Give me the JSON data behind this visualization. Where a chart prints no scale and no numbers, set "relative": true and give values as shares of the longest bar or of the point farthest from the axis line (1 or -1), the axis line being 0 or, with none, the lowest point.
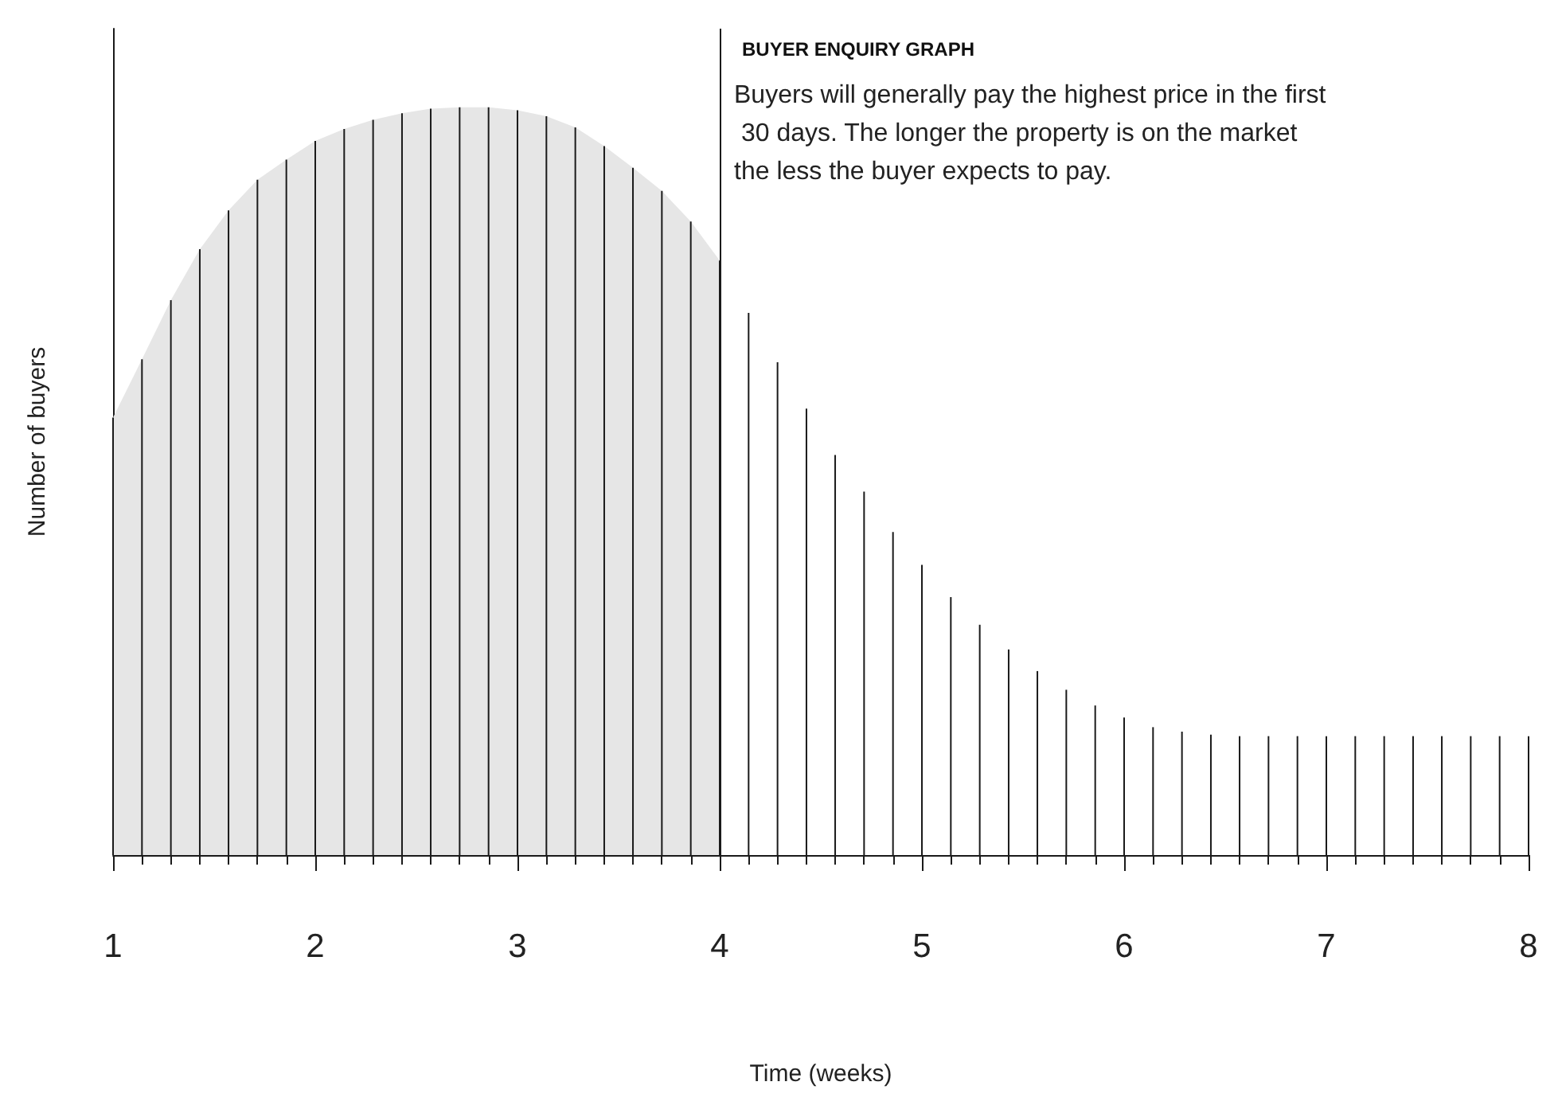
{
  "chart_data": {
    "type": "bar",
    "relative": true,
    "title": "BUYER ENQUIRY GRAPH",
    "annotations": [
      "Buyers will generally pay the highest price in the first 30 days. The longer the property is on the market the less the buyer expects to pay."
    ],
    "xlabel": "Time (weeks)",
    "ylabel": "Number of buyers",
    "xlim": [
      1,
      8
    ],
    "xticks": [
      1,
      2,
      3,
      4,
      5,
      6,
      7,
      8
    ],
    "x": [
      1,
      1.143,
      1.286,
      1.429,
      1.571,
      1.714,
      1.857,
      2,
      2.143,
      2.286,
      2.429,
      2.571,
      2.714,
      2.857,
      3,
      3.143,
      3.286,
      3.429,
      3.571,
      3.714,
      3.857,
      4,
      4.143,
      4.286,
      4.429,
      4.571,
      4.714,
      4.857,
      5,
      5.143,
      5.286,
      5.429,
      5.571,
      5.714,
      5.857,
      6,
      6.143,
      6.286,
      6.429,
      6.571,
      6.714,
      6.857,
      7,
      7.143,
      7.286,
      7.429,
      7.571,
      7.714,
      7.857,
      8
    ],
    "ref_lines": [
      {
        "axis": "x",
        "value": 4
      }
    ],
    "series": [
      {
        "type": "area",
        "color": "#e6e6e6",
        "x": [
          1,
          1.143,
          1.286,
          1.429,
          1.571,
          1.714,
          1.857,
          2,
          2.143,
          2.286,
          2.429,
          2.571,
          2.714,
          2.857,
          3,
          3.143,
          3.286,
          3.429,
          3.571,
          3.714,
          3.857,
          4
        ],
        "values": [
          0.585,
          0.663,
          0.742,
          0.81,
          0.862,
          0.903,
          0.93,
          0.955,
          0.971,
          0.983,
          0.992,
          0.998,
          1,
          1,
          0.996,
          0.988,
          0.973,
          0.948,
          0.919,
          0.888,
          0.847,
          0.795
        ]
      },
      {
        "color": "#1a1a1a",
        "values": [
          0.585,
          0.663,
          0.742,
          0.81,
          0.862,
          0.903,
          0.93,
          0.955,
          0.971,
          0.983,
          0.992,
          0.998,
          1,
          1,
          0.996,
          0.988,
          0.973,
          0.948,
          0.919,
          0.888,
          0.847,
          0.795,
          0.725,
          0.659,
          0.597,
          0.535,
          0.486,
          0.432,
          0.388,
          0.345,
          0.308,
          0.275,
          0.246,
          0.221,
          0.2,
          0.184,
          0.171,
          0.165,
          0.161,
          0.159,
          0.159,
          0.159,
          0.159,
          0.159,
          0.159,
          0.159,
          0.159,
          0.159,
          0.159,
          0.159
        ]
      }
    ]
  }
}
